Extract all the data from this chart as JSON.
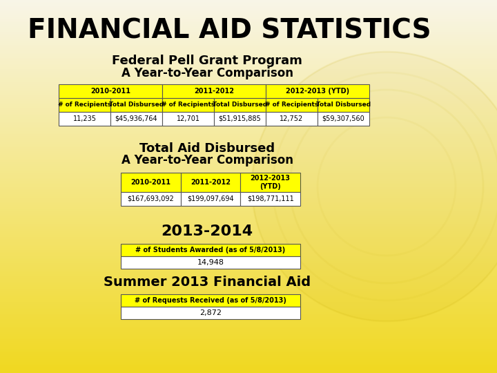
{
  "title": "FINANCIAL AID STATISTICS",
  "title_fontsize": 28,
  "bg_top": "#f8f5e8",
  "bg_bottom": "#f0d820",
  "section1_title": "Federal Pell Grant Program",
  "section1_subtitle": "A Year-to-Year Comparison",
  "pell_headers": [
    "2010-2011",
    "2011-2012",
    "2012-2013 (YTD)"
  ],
  "pell_subheaders": [
    "# of Recipients",
    "Total Disbursed",
    "# of Recipients",
    "Total Disbursed",
    "# of Recipients",
    "Total Disbursed"
  ],
  "pell_data": [
    "11,235",
    "$45,936,764",
    "12,701",
    "$51,915,885",
    "12,752",
    "$59,307,560"
  ],
  "section2_title": "Total Aid Disbursed",
  "section2_subtitle": "A Year-to-Year Comparison",
  "total_headers": [
    "2010-2011",
    "2011-2012",
    "2012-2013\n(YTD)"
  ],
  "total_data": [
    "$167,693,092",
    "$199,097,694",
    "$198,771,111"
  ],
  "section3_title": "2013-2014",
  "section3_header": "# of Students Awarded (as of 5/8/2013)",
  "section3_data": "14,948",
  "section4_title": "Summer 2013 Financial Aid",
  "section4_header": "# of Requests Received (as of 5/8/2013)",
  "section4_data": "2,872",
  "yellow": "#FFFF00",
  "white": "#FFFFFF",
  "black": "#000000",
  "border_color": "#555555",
  "table_font_size": 7.0,
  "section_title_fontsize": 12,
  "section_subtitle_fontsize": 11
}
